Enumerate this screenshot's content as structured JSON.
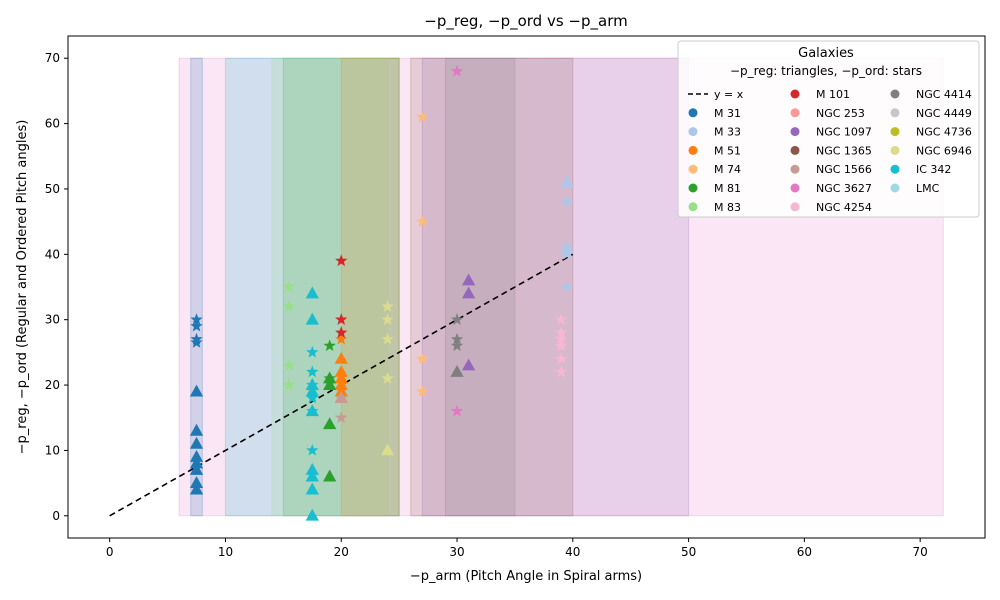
{
  "chart_data": {
    "type": "scatter",
    "title": "−p_reg, −p_ord vs −p_arm",
    "xlabel": "−p_arm (Pitch Angle in Spiral arms)",
    "ylabel": "−p_reg, −p_ord (Regular and Ordered Pitch angles)",
    "xlim": [
      -3.6,
      75.6
    ],
    "ylim": [
      -3.4,
      73.4
    ],
    "xticks": [
      0,
      10,
      20,
      30,
      40,
      50,
      60,
      70
    ],
    "yticks": [
      0,
      10,
      20,
      30,
      40,
      50,
      60,
      70
    ],
    "grid": false,
    "legend": {
      "placement": "top-right",
      "title": "Galaxies",
      "subtitle": "−p_reg: triangles,  −p_ord: stars",
      "line_label": "y = x"
    },
    "reference_line": {
      "label": "y = x",
      "x": [
        0,
        40
      ],
      "y": [
        0,
        40
      ],
      "style": "dashed",
      "color": "#000000"
    },
    "band_y_range": [
      0,
      70
    ],
    "series": [
      {
        "name": "M 31",
        "color": "#1f77b4",
        "band": [
          7,
          8
        ],
        "triangles": [
          [
            7.5,
            4
          ],
          [
            7.5,
            5
          ],
          [
            7.5,
            7
          ],
          [
            7.5,
            8
          ],
          [
            7.5,
            9
          ],
          [
            7.5,
            11
          ],
          [
            7.5,
            13
          ],
          [
            7.5,
            19
          ]
        ],
        "stars": [
          [
            7.5,
            26.5
          ],
          [
            7.5,
            27
          ],
          [
            7.5,
            29
          ],
          [
            7.5,
            30
          ]
        ]
      },
      {
        "name": "M 33",
        "color": "#aec7e8",
        "band": [
          null,
          null
        ],
        "triangles": [
          [
            39.5,
            41
          ],
          [
            39.5,
            51
          ]
        ],
        "stars": [
          [
            39.5,
            35
          ],
          [
            39.5,
            40
          ],
          [
            39.5,
            41
          ],
          [
            39.5,
            48
          ]
        ]
      },
      {
        "name": "M 51",
        "color": "#ff7f0e",
        "band": [
          20,
          25
        ],
        "triangles": [
          [
            20,
            18
          ],
          [
            20,
            19
          ],
          [
            20,
            20
          ],
          [
            20,
            21
          ],
          [
            20,
            22
          ],
          [
            20,
            24
          ]
        ],
        "stars": [
          [
            20,
            27
          ]
        ]
      },
      {
        "name": "M 74",
        "color": "#ffbb78",
        "band": [
          null,
          null
        ],
        "triangles": [],
        "stars": [
          [
            27,
            19
          ],
          [
            27,
            24
          ],
          [
            27,
            45
          ],
          [
            27,
            61
          ]
        ]
      },
      {
        "name": "M 81",
        "color": "#2ca02c",
        "band": [
          15,
          25
        ],
        "triangles": [
          [
            19,
            6
          ],
          [
            19,
            14
          ],
          [
            19,
            20
          ],
          [
            19,
            21
          ]
        ],
        "stars": [
          [
            19,
            21
          ],
          [
            19,
            26
          ]
        ]
      },
      {
        "name": "M 83",
        "color": "#98df8a",
        "band": [
          14,
          24
        ],
        "triangles": [],
        "stars": [
          [
            15.5,
            20
          ],
          [
            15.5,
            23
          ],
          [
            15.5,
            32
          ],
          [
            15.5,
            35
          ]
        ]
      },
      {
        "name": "M 101",
        "color": "#d62728",
        "band": [
          null,
          null
        ],
        "triangles": [],
        "stars": [
          [
            20,
            28
          ],
          [
            20,
            30
          ],
          [
            20,
            39
          ]
        ]
      },
      {
        "name": "NGC 253",
        "color": "#ff9896",
        "band": [
          null,
          null
        ],
        "triangles": [],
        "stars": []
      },
      {
        "name": "NGC 1097",
        "color": "#9467bd",
        "band": [
          27,
          50
        ],
        "triangles": [
          [
            31,
            23
          ],
          [
            31,
            34
          ],
          [
            31,
            36
          ]
        ],
        "stars": []
      },
      {
        "name": "NGC 1365",
        "color": "#8c564b",
        "band": [
          null,
          null
        ],
        "triangles": [],
        "stars": []
      },
      {
        "name": "NGC 1566",
        "color": "#c49c94",
        "band": [
          null,
          null
        ],
        "triangles": [
          [
            20,
            18
          ]
        ],
        "stars": [
          [
            20,
            15
          ],
          [
            20,
            18
          ]
        ]
      },
      {
        "name": "NGC 3627",
        "color": "#e377c2",
        "band": [
          6,
          72
        ],
        "triangles": [],
        "stars": [
          [
            30,
            16
          ],
          [
            30,
            68
          ]
        ]
      },
      {
        "name": "NGC 4254",
        "color": "#f7b6d2",
        "band": [
          null,
          null
        ],
        "triangles": [],
        "stars": [
          [
            39,
            22
          ],
          [
            39,
            24
          ],
          [
            39,
            26
          ],
          [
            39,
            27
          ],
          [
            39,
            28
          ],
          [
            39,
            30
          ]
        ]
      },
      {
        "name": "NGC 4414",
        "color": "#7f7f7f",
        "band": [
          null,
          null
        ],
        "triangles": [
          [
            30,
            22
          ]
        ],
        "stars": [
          [
            30,
            26
          ],
          [
            30,
            27
          ],
          [
            30,
            30
          ]
        ]
      },
      {
        "name": "NGC 4449",
        "color": "#c7c7c7",
        "band": [
          null,
          null
        ],
        "triangles": [],
        "stars": []
      },
      {
        "name": "NGC 4736",
        "color": "#bcbd22",
        "band": [
          null,
          null
        ],
        "triangles": [],
        "stars": []
      },
      {
        "name": "NGC 6946",
        "color": "#dbdb8d",
        "band": [
          null,
          null
        ],
        "triangles": [
          [
            24,
            10
          ]
        ],
        "stars": [
          [
            24,
            21
          ],
          [
            24,
            27
          ],
          [
            24,
            30
          ],
          [
            24,
            32
          ]
        ]
      },
      {
        "name": "IC 342",
        "color": "#17becf",
        "band": [
          10,
          25
        ],
        "triangles": [
          [
            17.5,
            0
          ],
          [
            17.5,
            4
          ],
          [
            17.5,
            6
          ],
          [
            17.5,
            7
          ],
          [
            17.5,
            16
          ],
          [
            17.5,
            19
          ],
          [
            17.5,
            20
          ],
          [
            17.5,
            30
          ],
          [
            17.5,
            34
          ]
        ],
        "stars": [
          [
            17.5,
            10
          ],
          [
            17.5,
            16
          ],
          [
            17.5,
            18
          ],
          [
            17.5,
            20
          ],
          [
            17.5,
            22
          ],
          [
            17.5,
            25
          ]
        ]
      },
      {
        "name": "LMC",
        "color": "#9edae5",
        "band": [
          null,
          null
        ],
        "triangles": [],
        "stars": []
      }
    ],
    "extra_bands": [
      {
        "color": "#8c564b",
        "range": [
          26,
          40
        ]
      },
      {
        "color": "#7f7f7f",
        "range": [
          29,
          35
        ]
      }
    ]
  }
}
